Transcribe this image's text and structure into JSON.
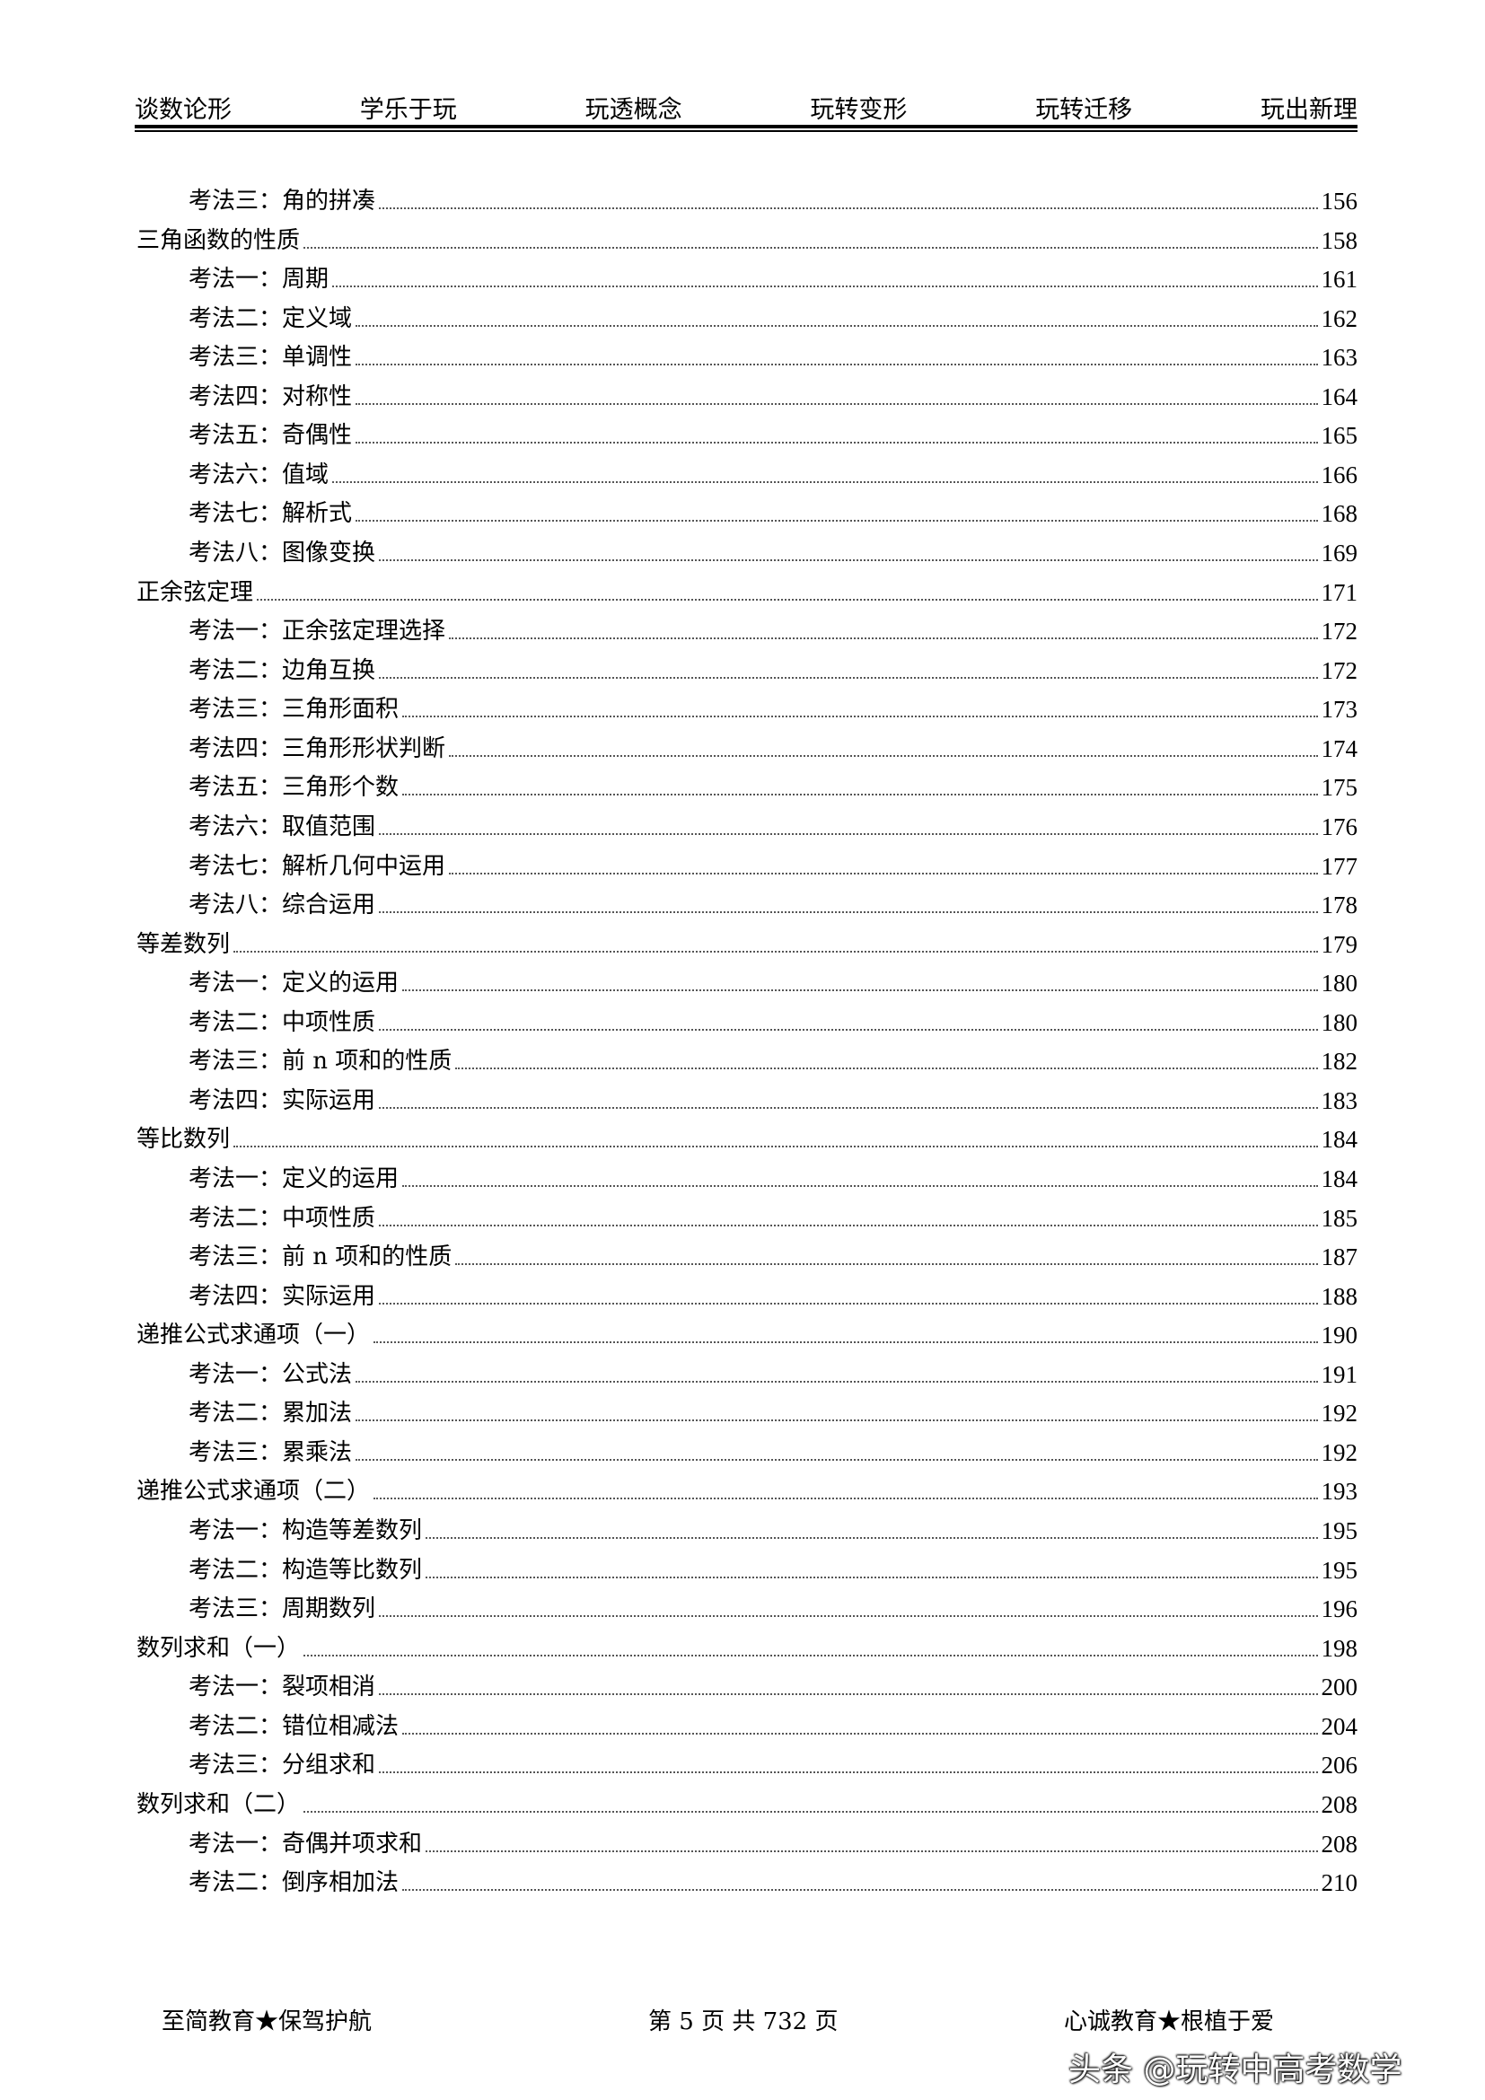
{
  "header": {
    "items": [
      "谈数论形",
      "学乐于玩",
      "玩透概念",
      "玩转变形",
      "玩转迁移",
      "玩出新理"
    ]
  },
  "toc": [
    {
      "level": 2,
      "label": "考法三：角的拼凑",
      "page": "156"
    },
    {
      "level": 1,
      "label": "三角函数的性质",
      "page": "158"
    },
    {
      "level": 2,
      "label": "考法一：周期",
      "page": "161"
    },
    {
      "level": 2,
      "label": "考法二：定义域",
      "page": "162"
    },
    {
      "level": 2,
      "label": "考法三：单调性",
      "page": "163"
    },
    {
      "level": 2,
      "label": "考法四：对称性",
      "page": "164"
    },
    {
      "level": 2,
      "label": "考法五：奇偶性",
      "page": "165"
    },
    {
      "level": 2,
      "label": "考法六：值域",
      "page": "166"
    },
    {
      "level": 2,
      "label": "考法七：解析式",
      "page": "168"
    },
    {
      "level": 2,
      "label": "考法八：图像变换",
      "page": "169"
    },
    {
      "level": 1,
      "label": "正余弦定理",
      "page": "171"
    },
    {
      "level": 2,
      "label": "考法一：正余弦定理选择",
      "page": "172"
    },
    {
      "level": 2,
      "label": "考法二：边角互换",
      "page": "172"
    },
    {
      "level": 2,
      "label": "考法三：三角形面积",
      "page": "173"
    },
    {
      "level": 2,
      "label": "考法四：三角形形状判断",
      "page": "174"
    },
    {
      "level": 2,
      "label": "考法五：三角形个数",
      "page": "175"
    },
    {
      "level": 2,
      "label": "考法六：取值范围",
      "page": "176"
    },
    {
      "level": 2,
      "label": "考法七：解析几何中运用",
      "page": "177"
    },
    {
      "level": 2,
      "label": "考法八：综合运用",
      "page": "178"
    },
    {
      "level": 1,
      "label": "等差数列",
      "page": "179"
    },
    {
      "level": 2,
      "label": "考法一：定义的运用",
      "page": "180"
    },
    {
      "level": 2,
      "label": "考法二：中项性质",
      "page": "180"
    },
    {
      "level": 2,
      "label": "考法三：前 n 项和的性质",
      "page": "182"
    },
    {
      "level": 2,
      "label": "考法四：实际运用",
      "page": "183"
    },
    {
      "level": 1,
      "label": "等比数列",
      "page": "184"
    },
    {
      "level": 2,
      "label": "考法一：定义的运用",
      "page": "184"
    },
    {
      "level": 2,
      "label": "考法二：中项性质",
      "page": "185"
    },
    {
      "level": 2,
      "label": "考法三：前 n 项和的性质",
      "page": "187"
    },
    {
      "level": 2,
      "label": "考法四：实际运用",
      "page": "188"
    },
    {
      "level": 1,
      "label": "递推公式求通项（一）",
      "page": "190"
    },
    {
      "level": 2,
      "label": "考法一：公式法",
      "page": "191"
    },
    {
      "level": 2,
      "label": "考法二：累加法",
      "page": "192"
    },
    {
      "level": 2,
      "label": "考法三：累乘法",
      "page": "192"
    },
    {
      "level": 1,
      "label": "递推公式求通项（二）",
      "page": "193"
    },
    {
      "level": 2,
      "label": "考法一：构造等差数列",
      "page": "195"
    },
    {
      "level": 2,
      "label": "考法二：构造等比数列",
      "page": "195"
    },
    {
      "level": 2,
      "label": "考法三：周期数列",
      "page": "196"
    },
    {
      "level": 1,
      "label": "数列求和（一）",
      "page": "198"
    },
    {
      "level": 2,
      "label": "考法一：裂项相消",
      "page": "200"
    },
    {
      "level": 2,
      "label": "考法二：错位相减法",
      "page": "204"
    },
    {
      "level": 2,
      "label": "考法三：分组求和",
      "page": "206"
    },
    {
      "level": 1,
      "label": "数列求和（二）",
      "page": "208"
    },
    {
      "level": 2,
      "label": "考法一：奇偶并项求和",
      "page": "208"
    },
    {
      "level": 2,
      "label": "考法二：倒序相加法",
      "page": "210"
    }
  ],
  "footer": {
    "left": "至简教育★保驾护航",
    "center": "第 5 页 共 732 页",
    "right": "心诚教育★根植于爱"
  },
  "watermark": "头条 @玩转中高考数学"
}
